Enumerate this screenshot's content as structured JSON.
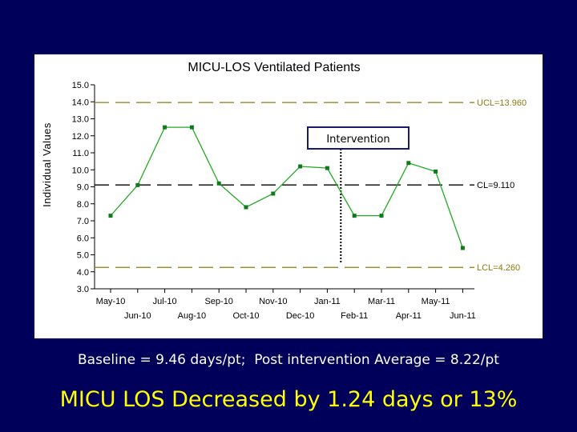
{
  "chart_data": {
    "type": "line",
    "title": "MICU-LOS Ventilated Patients",
    "ylabel": "Individual Values",
    "xlabel": "",
    "ylim": [
      3.0,
      15.0
    ],
    "yticks": [
      "15.0",
      "14.0",
      "13.0",
      "12.0",
      "11.0",
      "10.0",
      "9.0",
      "8.0",
      "7.0",
      "6.0",
      "5.0",
      "4.0",
      "3.0"
    ],
    "categories": [
      "May-10",
      "Jun-10",
      "Jul-10",
      "Aug-10",
      "Sep-10",
      "Oct-10",
      "Nov-10",
      "Dec-10",
      "Jan-11",
      "Feb-11",
      "Mar-11",
      "Apr-11",
      "May-11",
      "Jun-11"
    ],
    "values": [
      7.3,
      9.1,
      12.5,
      12.5,
      9.2,
      7.8,
      8.6,
      10.2,
      10.1,
      7.3,
      7.3,
      10.4,
      9.9,
      5.4
    ],
    "control_limits": {
      "ucl": {
        "value": 13.96,
        "label": "UCL=13.960"
      },
      "cl": {
        "value": 9.11,
        "label": "CL=9.110"
      },
      "lcl": {
        "value": 4.26,
        "label": "LCL=4.260"
      }
    },
    "annotation": {
      "label": "Intervention",
      "x_position_between": [
        "Jan-11",
        "Feb-11"
      ]
    },
    "grid": false,
    "line_color": "#22aa22",
    "limit_color": "#8c7a10",
    "center_line_color": "#000000"
  },
  "footer": {
    "baseline_text": "Baseline = 9.46 days/pt;  Post intervention Average = 8.22/pt",
    "headline": "MICU LOS Decreased by 1.24 days or 13%"
  },
  "colors": {
    "background": "#00005a",
    "headline": "#ffff00",
    "baseline_text": "#ffffff"
  }
}
